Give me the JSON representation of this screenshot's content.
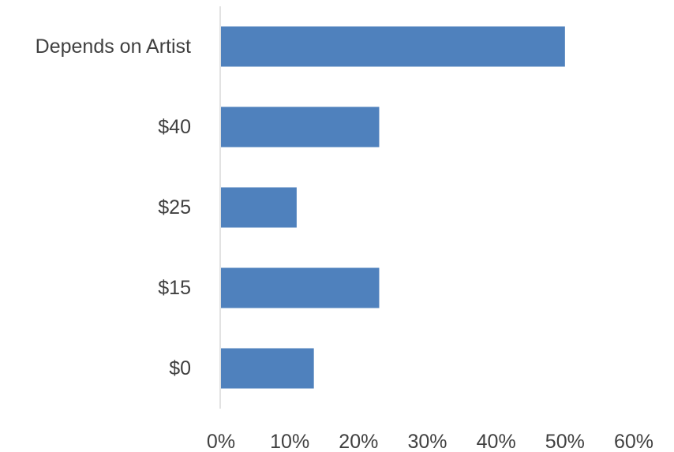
{
  "chart_data": {
    "type": "bar",
    "orientation": "horizontal",
    "title": "",
    "xlabel": "",
    "ylabel": "",
    "categories": [
      "Depends on Artist",
      "$40",
      "$25",
      "$15",
      "$0"
    ],
    "values": [
      0.5,
      0.23,
      0.11,
      0.23,
      0.135
    ],
    "xlim": [
      0,
      0.6
    ],
    "x_ticks": [
      0,
      0.1,
      0.2,
      0.3,
      0.4,
      0.5,
      0.6
    ],
    "x_tick_labels": [
      "0%",
      "10%",
      "20%",
      "30%",
      "40%",
      "50%",
      "60%"
    ],
    "grid": false,
    "legend": "none",
    "colors": {
      "bar": "#4f81bd",
      "axis": "#d9d9d9",
      "text": "#404040"
    }
  }
}
